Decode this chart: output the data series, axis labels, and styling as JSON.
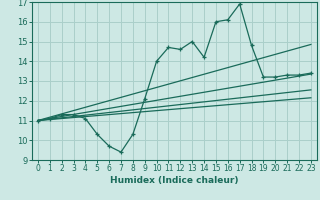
{
  "title": "",
  "xlabel": "Humidex (Indice chaleur)",
  "ylabel": "",
  "bg_color": "#cde8e4",
  "grid_color": "#aacfca",
  "line_color": "#1a6b5a",
  "xlim": [
    -0.5,
    23.5
  ],
  "ylim": [
    9,
    17
  ],
  "xticks": [
    0,
    1,
    2,
    3,
    4,
    5,
    6,
    7,
    8,
    9,
    10,
    11,
    12,
    13,
    14,
    15,
    16,
    17,
    18,
    19,
    20,
    21,
    22,
    23
  ],
  "yticks": [
    9,
    10,
    11,
    12,
    13,
    14,
    15,
    16,
    17
  ],
  "zigzag_x": [
    0,
    1,
    2,
    3,
    4,
    5,
    6,
    7,
    8,
    9,
    10,
    11,
    12,
    13,
    14,
    15,
    16,
    17,
    18,
    19,
    20,
    21,
    22,
    23
  ],
  "zigzag_y": [
    11.0,
    11.1,
    11.3,
    11.3,
    11.1,
    10.3,
    9.7,
    9.4,
    10.3,
    12.1,
    14.0,
    14.7,
    14.6,
    15.0,
    14.2,
    16.0,
    16.1,
    16.9,
    14.8,
    13.2,
    13.2,
    13.3,
    13.3,
    13.4
  ],
  "line1_x": [
    0,
    23
  ],
  "line1_y": [
    11.0,
    13.35
  ],
  "line2_x": [
    0,
    23
  ],
  "line2_y": [
    11.0,
    14.85
  ],
  "line3_x": [
    0,
    23
  ],
  "line3_y": [
    11.0,
    12.55
  ],
  "line4_x": [
    0,
    23
  ],
  "line4_y": [
    11.0,
    12.15
  ]
}
